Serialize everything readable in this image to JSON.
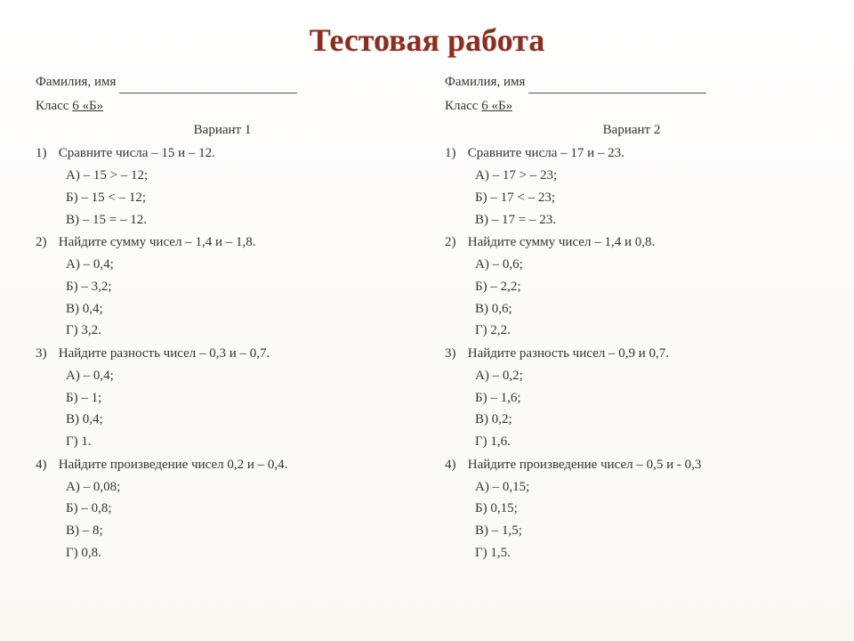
{
  "title": "Тестовая работа",
  "left": {
    "name_label": "Фамилия, имя",
    "class_label": "Класс",
    "class_value": "6 «Б»",
    "variant": "Вариант 1",
    "questions": [
      {
        "num": "1)",
        "text": "Сравните числа – 15 и – 12.",
        "opts": [
          "А) – 15 >  – 12;",
          "Б) – 15 <  – 12;",
          "В) – 15 =  – 12."
        ]
      },
      {
        "num": "2)",
        "text": "Найдите сумму чисел – 1,4 и – 1,8.",
        "opts": [
          "А) – 0,4;",
          "Б) – 3,2;",
          "В) 0,4;",
          "Г) 3,2."
        ]
      },
      {
        "num": "3)",
        "text": "Найдите разность чисел – 0,3 и – 0,7.",
        "opts": [
          "А) – 0,4;",
          "Б) – 1;",
          "В) 0,4;",
          "Г) 1."
        ]
      },
      {
        "num": "4)",
        "text": "Найдите произведение чисел 0,2 и – 0,4.",
        "opts": [
          "А) – 0,08;",
          "Б) – 0,8;",
          "В) – 8;",
          "Г) 0,8."
        ]
      }
    ]
  },
  "right": {
    "name_label": "Фамилия, имя",
    "class_label": "Класс",
    "class_value": "6 «Б»",
    "variant": "Вариант 2",
    "questions": [
      {
        "num": "1)",
        "text": "Сравните числа – 17 и – 23.",
        "opts": [
          "А) – 17 >  – 23;",
          "Б) – 17 <  – 23;",
          "В) – 17 =  – 23."
        ]
      },
      {
        "num": "2)",
        "text": "Найдите сумму чисел – 1,4 и 0,8.",
        "opts": [
          "А) – 0,6;",
          "Б) – 2,2;",
          "В) 0,6;",
          "Г) 2,2."
        ]
      },
      {
        "num": "3)",
        "text": "Найдите разность чисел – 0,9 и 0,7.",
        "opts": [
          "А) – 0,2;",
          "Б) – 1,6;",
          "В) 0,2;",
          "Г) 1,6."
        ]
      },
      {
        "num": "4)",
        "text": "Найдите произведение чисел – 0,5 и - 0,3",
        "opts": [
          "А) – 0,15;",
          "Б) 0,15;",
          "В) – 1,5;",
          "Г) 1,5."
        ]
      }
    ]
  }
}
